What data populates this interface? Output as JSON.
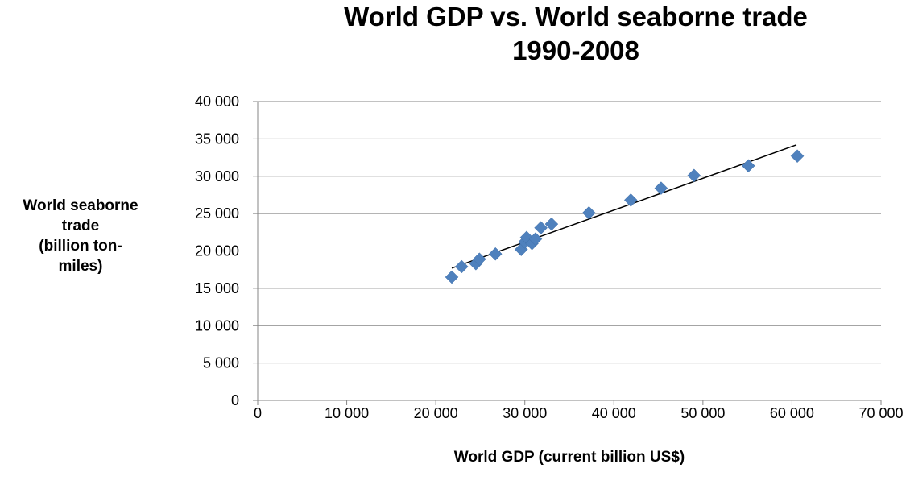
{
  "chart_data": {
    "type": "scatter",
    "title_lines": [
      "World GDP vs. World seaborne trade",
      "1990-2008"
    ],
    "xlabel": "World GDP (current billion US$)",
    "ylabel_lines": [
      "World seaborne",
      "trade",
      "(billion ton-",
      "miles)"
    ],
    "xlim": [
      0,
      70000
    ],
    "ylim": [
      0,
      40000
    ],
    "x_ticks": [
      0,
      10000,
      20000,
      30000,
      40000,
      50000,
      60000,
      70000
    ],
    "x_tick_labels": [
      "0",
      "10 000",
      "20 000",
      "30 000",
      "40 000",
      "50 000",
      "60 000",
      "70 000"
    ],
    "y_ticks": [
      0,
      5000,
      10000,
      15000,
      20000,
      25000,
      30000,
      35000,
      40000
    ],
    "y_tick_labels": [
      "0",
      "5 000",
      "10 000",
      "15 000",
      "20 000",
      "25 000",
      "30 000",
      "35 000",
      "40 000"
    ],
    "grid": "horizontal",
    "marker": "diamond",
    "marker_color": "#4F81BD",
    "trendline": {
      "type": "linear",
      "x": [
        21800,
        60500
      ],
      "y": [
        17700,
        34200
      ],
      "color": "#000000"
    },
    "points": [
      {
        "x": 21800,
        "y": 16500
      },
      {
        "x": 22900,
        "y": 17900
      },
      {
        "x": 24500,
        "y": 18300
      },
      {
        "x": 24900,
        "y": 18900
      },
      {
        "x": 26700,
        "y": 19600
      },
      {
        "x": 29600,
        "y": 20200
      },
      {
        "x": 30000,
        "y": 21200
      },
      {
        "x": 30200,
        "y": 21800
      },
      {
        "x": 30800,
        "y": 21000
      },
      {
        "x": 31200,
        "y": 21600
      },
      {
        "x": 31800,
        "y": 23100
      },
      {
        "x": 33000,
        "y": 23600
      },
      {
        "x": 37200,
        "y": 25100
      },
      {
        "x": 41900,
        "y": 26800
      },
      {
        "x": 45300,
        "y": 28400
      },
      {
        "x": 49000,
        "y": 30100
      },
      {
        "x": 55100,
        "y": 31400
      },
      {
        "x": 60600,
        "y": 32700
      }
    ]
  }
}
